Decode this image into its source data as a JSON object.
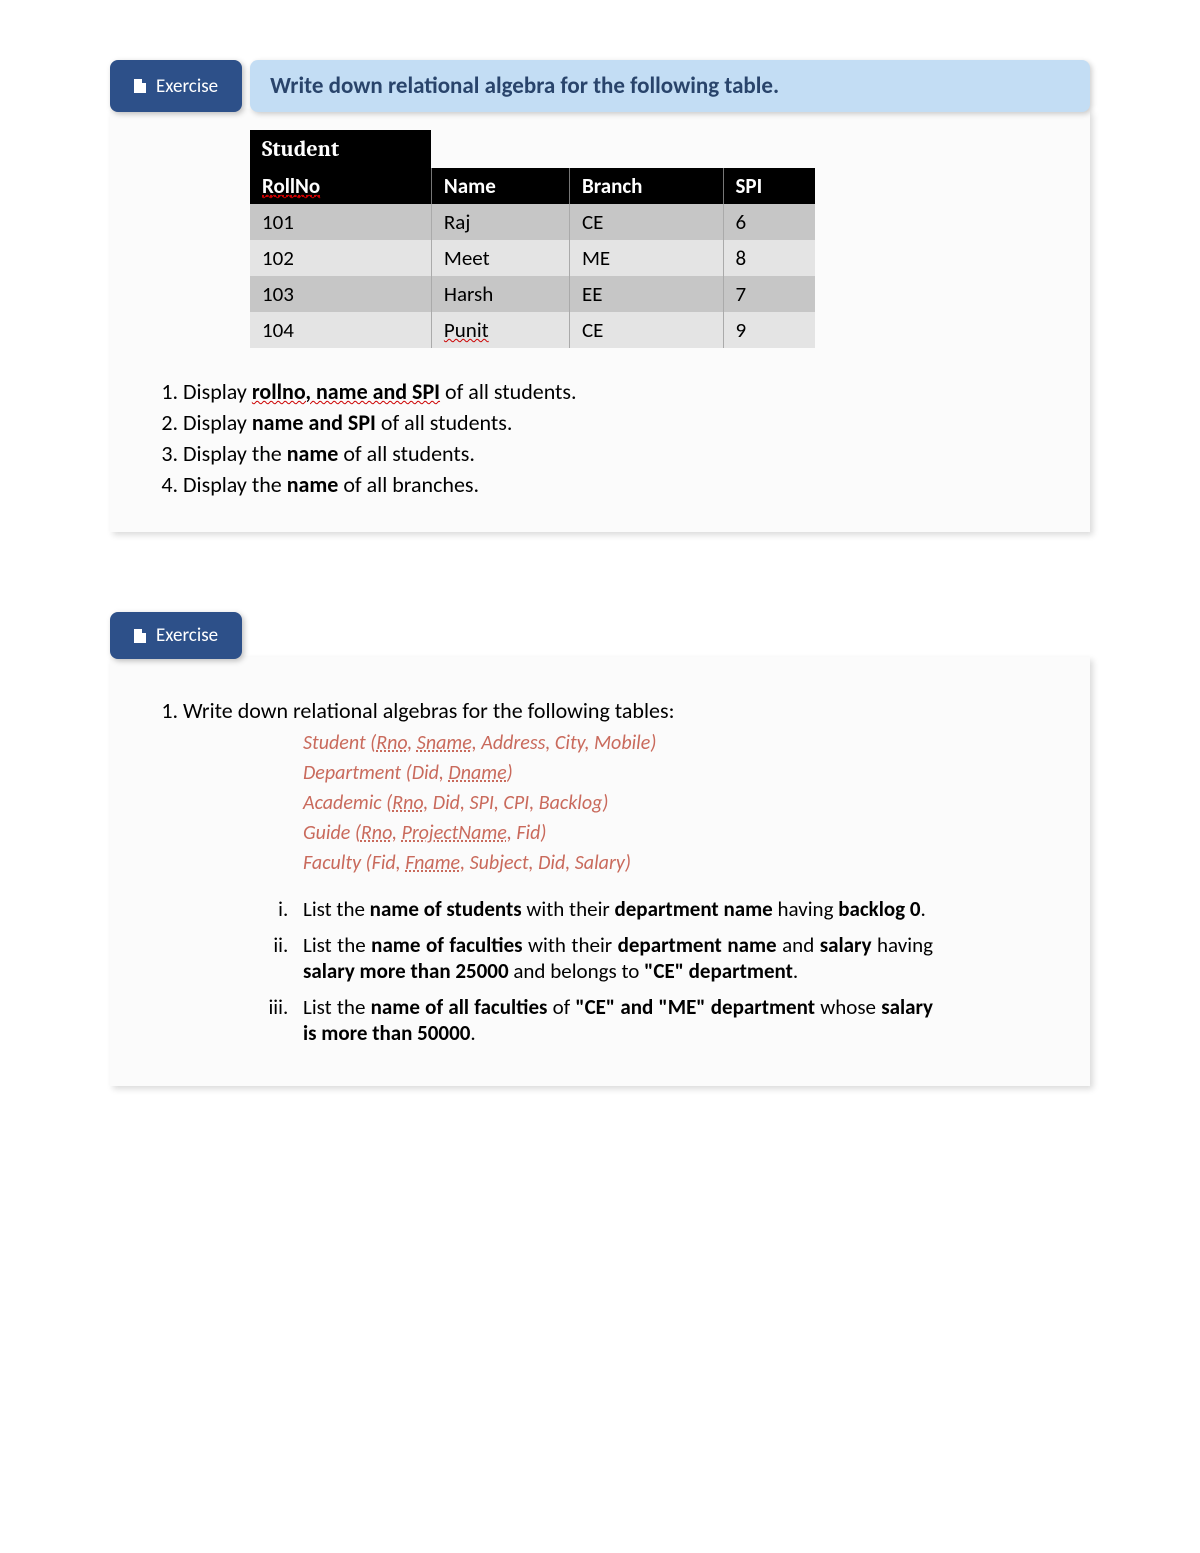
{
  "section1": {
    "badge": "Exercise",
    "title": "Write down relational algebra for the following table.",
    "table": {
      "caption": "Student",
      "columns": [
        "RollNo",
        "Name",
        "Branch",
        "SPI"
      ],
      "rows": [
        [
          "101",
          "Raj",
          "CE",
          "6"
        ],
        [
          "102",
          "Meet",
          "ME",
          "8"
        ],
        [
          "103",
          "Harsh",
          "EE",
          "7"
        ],
        [
          "104",
          "Punit",
          "CE",
          "9"
        ]
      ]
    },
    "questions": {
      "q1": {
        "pre": "Display ",
        "bold": "rollno, name and SPI",
        "post": " of all students."
      },
      "q2": {
        "pre": "Display ",
        "bold": "name and SPI",
        "post": " of all students."
      },
      "q3": {
        "pre": "Display the ",
        "bold": "name",
        "post": " of all students."
      },
      "q4": {
        "pre": "Display the ",
        "bold": "name",
        "post": " of all branches."
      }
    }
  },
  "section2": {
    "badge": "Exercise",
    "intro": "Write down relational algebras for the following  tables:",
    "schema": {
      "s1": "Student (Rno, Sname, Address, City, Mobile)",
      "s2": "Department (Did, Dname)",
      "s3": "Academic (Rno, Did, SPI, CPI, Backlog)",
      "s4": "Guide (Rno, ProjectName, Fid)",
      "s5": "Faculty (Fid, Fname, Subject, Did, Salary)"
    },
    "sub": {
      "i": {
        "p1": "List the ",
        "b1": "name of students",
        "p2": " with their ",
        "b2": "department name",
        "p3": " having ",
        "b3": "backlog 0",
        "p4": "."
      },
      "ii": {
        "p1": "List the ",
        "b1": "name of faculties",
        "p2": " with their ",
        "b2": "department name",
        "p3": " and ",
        "b3": "salary",
        "p4": " having ",
        "b4": "salary more than 25000",
        "p5": " and belongs to ",
        "b5": "\"CE\" department",
        "p6": "."
      },
      "iii": {
        "p1": "List the ",
        "b1": "name of all faculties",
        "p2": " of ",
        "b2": "\"CE\" and \"ME\" department",
        "p3": " whose ",
        "b3": "salary is more than 50000",
        "p4": "."
      }
    }
  }
}
